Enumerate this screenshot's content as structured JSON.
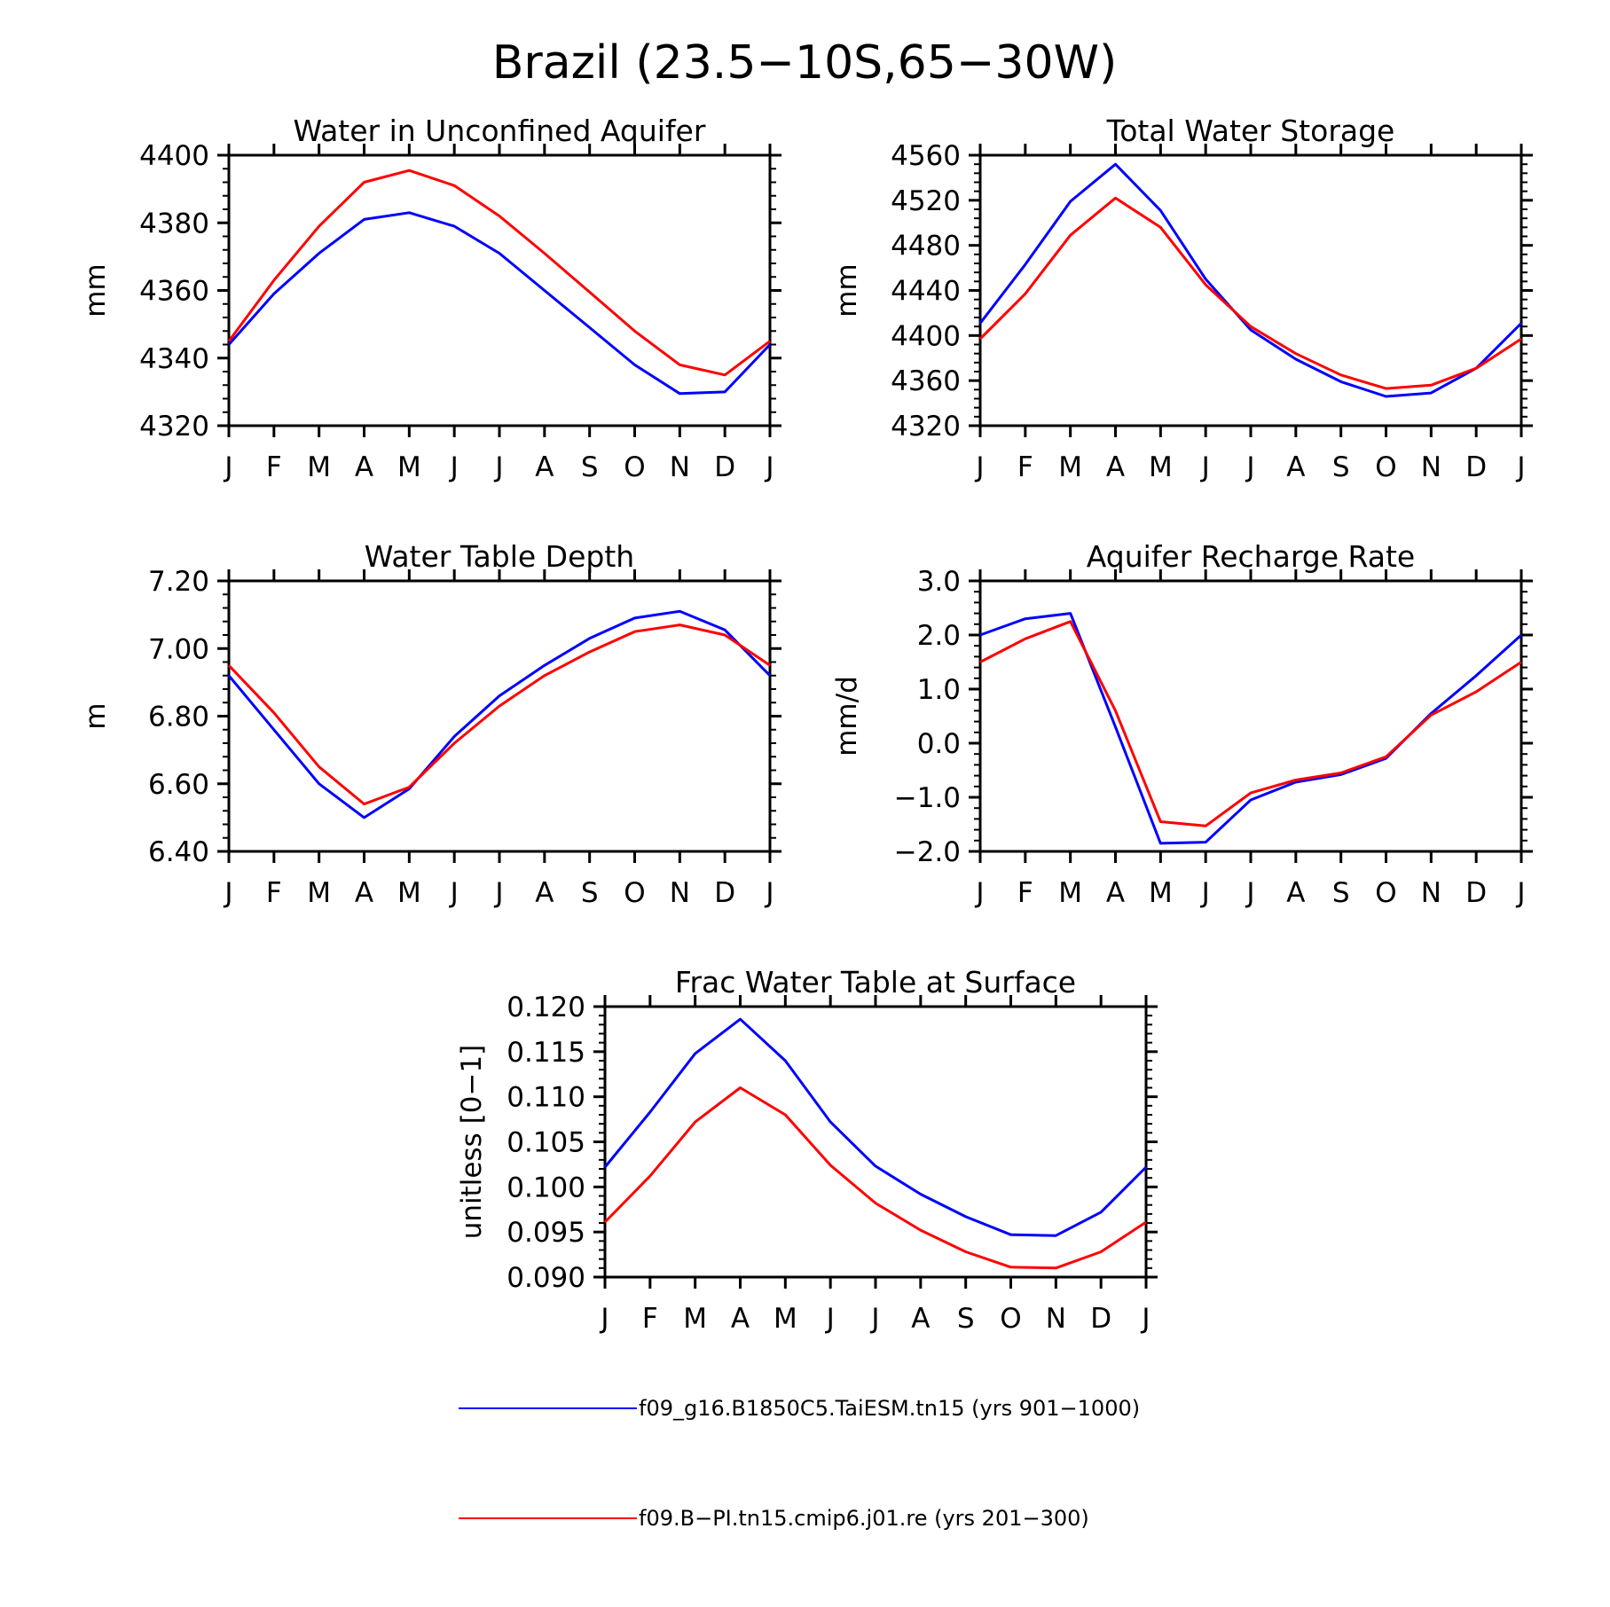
{
  "figure": {
    "title": "Brazil (23.5−10S,65−30W)"
  },
  "colors": {
    "series_1": "#0000ff",
    "series_2": "#ff0000"
  },
  "legend": {
    "placement": "bottom-center",
    "items": [
      {
        "label": "f09_g16.B1850C5.TaiESM.tn15 (yrs 901−1000)",
        "color": "#0000ff"
      },
      {
        "label": "f09.B−PI.tn15.cmip6.j01.re (yrs 201−300)",
        "color": "#ff0000"
      }
    ]
  },
  "chart_data": [
    {
      "type": "line",
      "title": "Water in Unconfined Aquifer",
      "xlabel": "",
      "ylabel": "mm",
      "categories": [
        "J",
        "F",
        "M",
        "A",
        "M",
        "J",
        "J",
        "A",
        "S",
        "O",
        "N",
        "D",
        "J"
      ],
      "ylim": [
        4320,
        4400
      ],
      "yticks": [
        "4320",
        "4340",
        "4360",
        "4380",
        "4400"
      ],
      "grid": false,
      "series": [
        {
          "color": "#0000ff",
          "values": [
            4344,
            4359,
            4371,
            4381,
            4383,
            4379,
            4371,
            4360,
            4349,
            4338,
            4329.5,
            4330,
            4344
          ]
        },
        {
          "color": "#ff0000",
          "values": [
            4345,
            4363,
            4379,
            4392,
            4395.5,
            4391,
            4382,
            4371,
            4359.5,
            4348,
            4338,
            4335,
            4345
          ]
        }
      ]
    },
    {
      "type": "line",
      "title": "Total Water Storage",
      "xlabel": "",
      "ylabel": "mm",
      "categories": [
        "J",
        "F",
        "M",
        "A",
        "M",
        "J",
        "J",
        "A",
        "S",
        "O",
        "N",
        "D",
        "J"
      ],
      "ylim": [
        4320,
        4560
      ],
      "yticks": [
        "4320",
        "4360",
        "4400",
        "4440",
        "4480",
        "4520",
        "4560"
      ],
      "grid": false,
      "series": [
        {
          "color": "#0000ff",
          "values": [
            4411,
            4463,
            4519,
            4552,
            4511,
            4450,
            4405,
            4379,
            4359,
            4346,
            4349,
            4371,
            4411
          ]
        },
        {
          "color": "#ff0000",
          "values": [
            4397,
            4437,
            4489,
            4522,
            4496,
            4445,
            4408,
            4384,
            4365,
            4353,
            4356,
            4371,
            4397
          ]
        }
      ]
    },
    {
      "type": "line",
      "title": "Water Table Depth",
      "xlabel": "",
      "ylabel": "m",
      "categories": [
        "J",
        "F",
        "M",
        "A",
        "M",
        "J",
        "J",
        "A",
        "S",
        "O",
        "N",
        "D",
        "J"
      ],
      "ylim": [
        6.4,
        7.2
      ],
      "yticks": [
        "6.40",
        "6.60",
        "6.80",
        "7.00",
        "7.20"
      ],
      "grid": false,
      "series": [
        {
          "color": "#0000ff",
          "values": [
            6.92,
            6.76,
            6.6,
            6.5,
            6.585,
            6.74,
            6.86,
            6.95,
            7.03,
            7.09,
            7.11,
            7.055,
            6.92
          ]
        },
        {
          "color": "#ff0000",
          "values": [
            6.95,
            6.81,
            6.65,
            6.54,
            6.59,
            6.72,
            6.83,
            6.92,
            6.99,
            7.05,
            7.07,
            7.04,
            6.95
          ]
        }
      ]
    },
    {
      "type": "line",
      "title": "Aquifer Recharge Rate",
      "xlabel": "",
      "ylabel": "mm/d",
      "categories": [
        "J",
        "F",
        "M",
        "A",
        "M",
        "J",
        "J",
        "A",
        "S",
        "O",
        "N",
        "D",
        "J"
      ],
      "ylim": [
        -2.0,
        3.0
      ],
      "yticks": [
        "−2.0",
        "−1.0",
        "0.0",
        "1.0",
        "2.0",
        "3.0"
      ],
      "grid": false,
      "series": [
        {
          "color": "#0000ff",
          "values": [
            2.0,
            2.3,
            2.4,
            0.3,
            -1.85,
            -1.83,
            -1.05,
            -0.72,
            -0.58,
            -0.28,
            0.55,
            1.25,
            2.0
          ]
        },
        {
          "color": "#ff0000",
          "values": [
            1.5,
            1.93,
            2.25,
            0.6,
            -1.45,
            -1.53,
            -0.92,
            -0.68,
            -0.55,
            -0.25,
            0.52,
            0.95,
            1.5
          ]
        }
      ]
    },
    {
      "type": "line",
      "title": "Frac Water Table at Surface",
      "xlabel": "",
      "ylabel": "unitless [0−1]",
      "categories": [
        "J",
        "F",
        "M",
        "A",
        "M",
        "J",
        "J",
        "A",
        "S",
        "O",
        "N",
        "D",
        "J"
      ],
      "ylim": [
        0.09,
        0.12
      ],
      "yticks": [
        "0.090",
        "0.095",
        "0.100",
        "0.105",
        "0.110",
        "0.115",
        "0.120"
      ],
      "grid": false,
      "series": [
        {
          "color": "#0000ff",
          "values": [
            0.1022,
            0.1083,
            0.1148,
            0.1186,
            0.114,
            0.1072,
            0.1023,
            0.0992,
            0.0967,
            0.0947,
            0.0946,
            0.0972,
            0.1022
          ]
        },
        {
          "color": "#ff0000",
          "values": [
            0.0961,
            0.1012,
            0.1072,
            0.111,
            0.108,
            0.1024,
            0.0982,
            0.0952,
            0.0928,
            0.0911,
            0.091,
            0.0928,
            0.0961
          ]
        }
      ]
    }
  ]
}
